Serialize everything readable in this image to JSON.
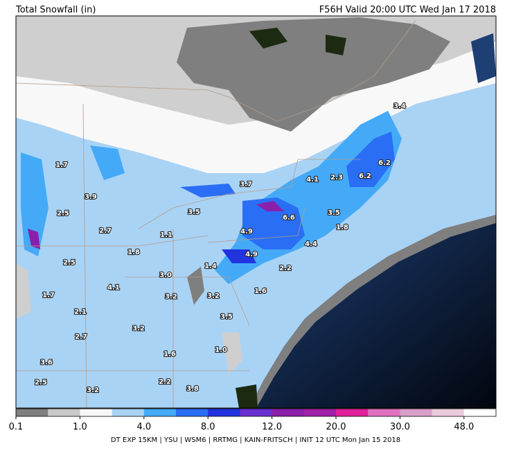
{
  "header": {
    "title_left": "Total Snowfall (in)",
    "title_right": "F56H Valid 20:00 UTC Wed Jan 17 2018"
  },
  "map_labels": [
    "3.4",
    "6.2",
    "1.7",
    "4.1",
    "2.3",
    "6.2",
    "3.7",
    "3.9",
    "3.5",
    "2.5",
    "6.6",
    "3.5",
    "2.7",
    "1.1",
    "4.9",
    "1.8",
    "4.4",
    "2.5",
    "1.8",
    "4.9",
    "1.4",
    "2.2",
    "3.0",
    "4.1",
    "1.6",
    "1.7",
    "3.2",
    "3.2",
    "2.1",
    "3.5",
    "3.2",
    "2.7",
    "1.0",
    "1.6",
    "3.6",
    "2.5",
    "2.2",
    "3.2",
    "3.8"
  ],
  "colorbar": {
    "colors": [
      "#7f7f7f",
      "#c9c9c9",
      "#f7f7f7",
      "#a9d3f5",
      "#44aaf8",
      "#2a6ef5",
      "#2233e0",
      "#6a2fd0",
      "#8a1faa",
      "#a020a8",
      "#e0209a",
      "#e070c0",
      "#d8a0c8",
      "#ebcadc",
      "#ffffff"
    ],
    "tick_labels": [
      "0.1",
      "1.0",
      "4.0",
      "8.0",
      "12.0",
      "20.0",
      "30.0",
      "48.0"
    ]
  },
  "footer": "DT EXP 15KM | YSU | WSM6 | RRTMG | KAIN-FRITSCH | INIT 12 UTC Mon Jan 15 2018"
}
